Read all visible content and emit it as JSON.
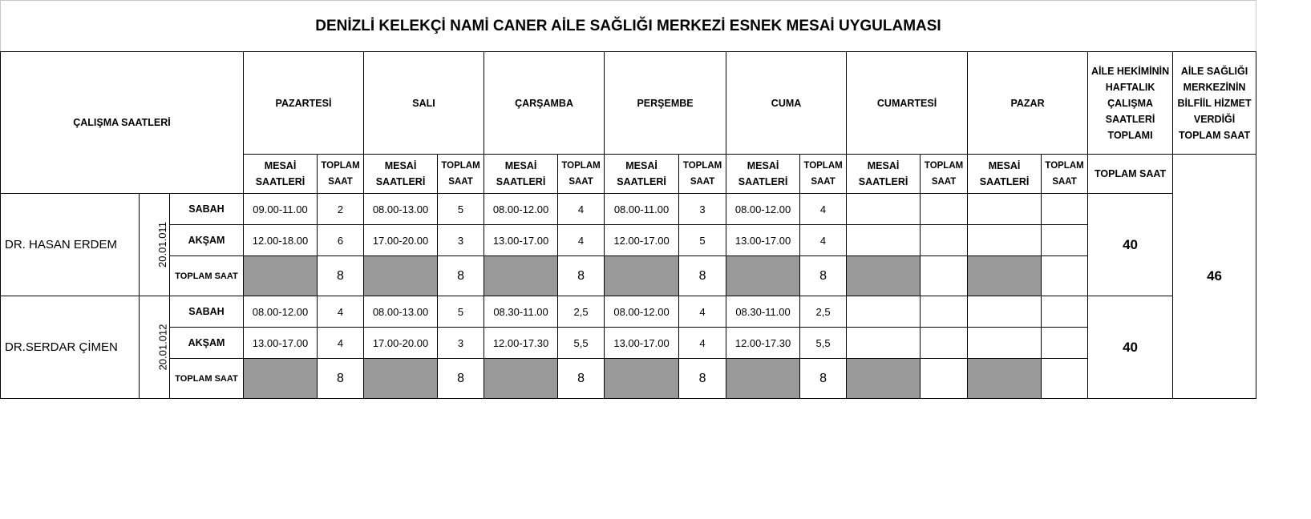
{
  "title": "DENİZLİ KELEKÇİ NAMİ CANER AİLE SAĞLIĞI MERKEZİ ESNEK MESAİ UYGULAMASI",
  "header": {
    "calisma": "ÇALIŞMA SAATLERİ",
    "days": [
      "PAZARTESİ",
      "SALI",
      "ÇARŞAMBA",
      "PERŞEMBE",
      "CUMA",
      "CUMARTESİ",
      "PAZAR"
    ],
    "mesai": "MESAİ SAATLERİ",
    "toplam": "TOPLAM SAAT",
    "weekly": "AİLE HEKİMİNİN HAFTALIK ÇALIŞMA SAATLERİ TOPLAMI",
    "weekly_sub": "TOPLAM SAAT",
    "center": "AİLE SAĞLIĞI MERKEZİNİN BİLFİİL HİZMET VERDİĞİ TOPLAM SAAT"
  },
  "labels": {
    "sabah": "SABAH",
    "aksam": "AKŞAM",
    "toplam": "TOPLAM SAAT"
  },
  "center_total": "46",
  "doctors": [
    {
      "name": "DR. HASAN ERDEM",
      "date": "20.01.011",
      "weekly": "40",
      "sabah": [
        [
          "09.00-11.00",
          "2"
        ],
        [
          "08.00-13.00",
          "5"
        ],
        [
          "08.00-12.00",
          "4"
        ],
        [
          "08.00-11.00",
          "3"
        ],
        [
          "08.00-12.00",
          "4"
        ],
        [
          "",
          ""
        ],
        [
          "",
          ""
        ]
      ],
      "aksam": [
        [
          "12.00-18.00",
          "6"
        ],
        [
          "17.00-20.00",
          "3"
        ],
        [
          "13.00-17.00",
          "4"
        ],
        [
          "12.00-17.00",
          "5"
        ],
        [
          "13.00-17.00",
          "4"
        ],
        [
          "",
          ""
        ],
        [
          "",
          ""
        ]
      ],
      "toplam": [
        "8",
        "8",
        "8",
        "8",
        "8",
        "",
        ""
      ]
    },
    {
      "name": "DR.SERDAR ÇİMEN",
      "date": "20.01.012",
      "weekly": "40",
      "sabah": [
        [
          "08.00-12.00",
          "4"
        ],
        [
          "08.00-13.00",
          "5"
        ],
        [
          "08.30-11.00",
          "2,5"
        ],
        [
          "08.00-12.00",
          "4"
        ],
        [
          "08.30-11.00",
          "2,5"
        ],
        [
          "",
          ""
        ],
        [
          "",
          ""
        ]
      ],
      "aksam": [
        [
          "13.00-17.00",
          "4"
        ],
        [
          "17.00-20.00",
          "3"
        ],
        [
          "12.00-17.30",
          "5,5"
        ],
        [
          "13.00-17.00",
          "4"
        ],
        [
          "12.00-17.30",
          "5,5"
        ],
        [
          "",
          ""
        ],
        [
          "",
          ""
        ]
      ],
      "toplam": [
        "8",
        "8",
        "8",
        "8",
        "8",
        "",
        ""
      ]
    }
  ]
}
